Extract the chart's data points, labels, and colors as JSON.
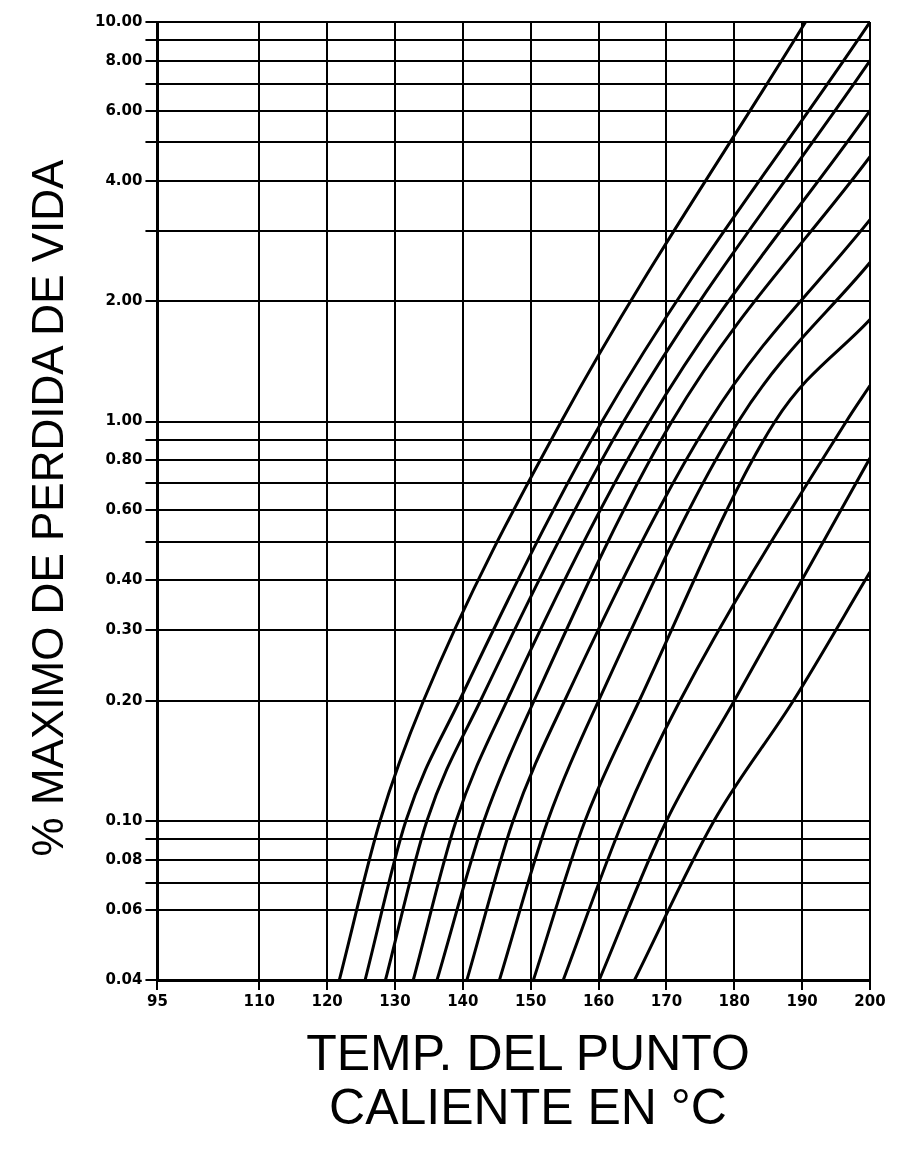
{
  "chart_data": {
    "type": "line",
    "xlabel": "TEMP. DEL PUNTO CALIENTE EN °C",
    "ylabel": "% MAXIMO DE PERDIDA DE VIDA",
    "log": "y",
    "grid": true,
    "marker": "none",
    "line_style": "solid",
    "xlim": [
      95,
      200
    ],
    "xticks": [
      95,
      110,
      120,
      130,
      140,
      150,
      160,
      170,
      180,
      190,
      200
    ],
    "ylim": [
      0.04,
      10
    ],
    "yticks": [
      {
        "value": 0.04,
        "label": "0.04"
      },
      {
        "value": 0.06,
        "label": "0.06"
      },
      {
        "value": 0.07,
        "label": null
      },
      {
        "value": 0.08,
        "label": "0.08"
      },
      {
        "value": 0.09,
        "label": null
      },
      {
        "value": 0.1,
        "label": "0.10"
      },
      {
        "value": 0.2,
        "label": "0.20"
      },
      {
        "value": 0.3,
        "label": "0.30"
      },
      {
        "value": 0.4,
        "label": "0.40"
      },
      {
        "value": 0.5,
        "label": null
      },
      {
        "value": 0.6,
        "label": "0.60"
      },
      {
        "value": 0.7,
        "label": null
      },
      {
        "value": 0.8,
        "label": "0.80"
      },
      {
        "value": 0.9,
        "label": null
      },
      {
        "value": 1,
        "label": "1.00"
      },
      {
        "value": 2,
        "label": "2.00"
      },
      {
        "value": 3,
        "label": null
      },
      {
        "value": 4,
        "label": "4.00"
      },
      {
        "value": 5,
        "label": null
      },
      {
        "value": 6,
        "label": "6.00"
      },
      {
        "value": 7,
        "label": null
      },
      {
        "value": 8,
        "label": "8.00"
      },
      {
        "value": 9,
        "label": null
      },
      {
        "value": 10,
        "label": "10.00"
      }
    ],
    "series": [
      {
        "color": "#000000",
        "x": [
          121.8,
          127.8,
          134.2,
          154.5,
          190.5
        ],
        "values": [
          0.04,
          0.1,
          0.2,
          1,
          10
        ]
      },
      {
        "color": "#000000",
        "x": [
          125.6,
          131.6,
          139.5,
          160.5,
          200
        ],
        "values": [
          0.04,
          0.1,
          0.2,
          1,
          10
        ]
      },
      {
        "color": "#000000",
        "x": [
          128.6,
          134.7,
          142.6,
          163.7,
          200
        ],
        "values": [
          0.04,
          0.1,
          0.2,
          1,
          8
        ]
      },
      {
        "color": "#000000",
        "x": [
          132.7,
          139,
          146.5,
          167.5,
          200
        ],
        "values": [
          0.04,
          0.1,
          0.2,
          1,
          6
        ]
      },
      {
        "color": "#000000",
        "x": [
          136.2,
          143.1,
          150.5,
          170.8,
          200
        ],
        "values": [
          0.04,
          0.1,
          0.2,
          1,
          4.6
        ]
      },
      {
        "color": "#000000",
        "x": [
          140.6,
          147.4,
          155,
          176.3,
          200
        ],
        "values": [
          0.04,
          0.1,
          0.2,
          1,
          3.2
        ]
      },
      {
        "color": "#000000",
        "x": [
          145.4,
          152.5,
          160,
          180.6,
          200
        ],
        "values": [
          0.04,
          0.1,
          0.2,
          1,
          2.5
        ]
      },
      {
        "color": "#000000",
        "x": [
          150.4,
          158,
          166,
          186,
          200
        ],
        "values": [
          0.04,
          0.1,
          0.2,
          1,
          1.8
        ]
      },
      {
        "color": "#000000",
        "x": [
          154.8,
          163.6,
          172,
          196.5,
          200
        ],
        "values": [
          0.04,
          0.1,
          0.2,
          1,
          1.23
        ]
      },
      {
        "color": "#000000",
        "x": [
          160.1,
          170,
          180,
          200
        ],
        "values": [
          0.04,
          0.1,
          0.2,
          0.81
        ]
      },
      {
        "color": "#000000",
        "x": [
          165.3,
          177,
          188.7,
          200
        ],
        "values": [
          0.04,
          0.1,
          0.2,
          0.42
        ]
      }
    ]
  }
}
